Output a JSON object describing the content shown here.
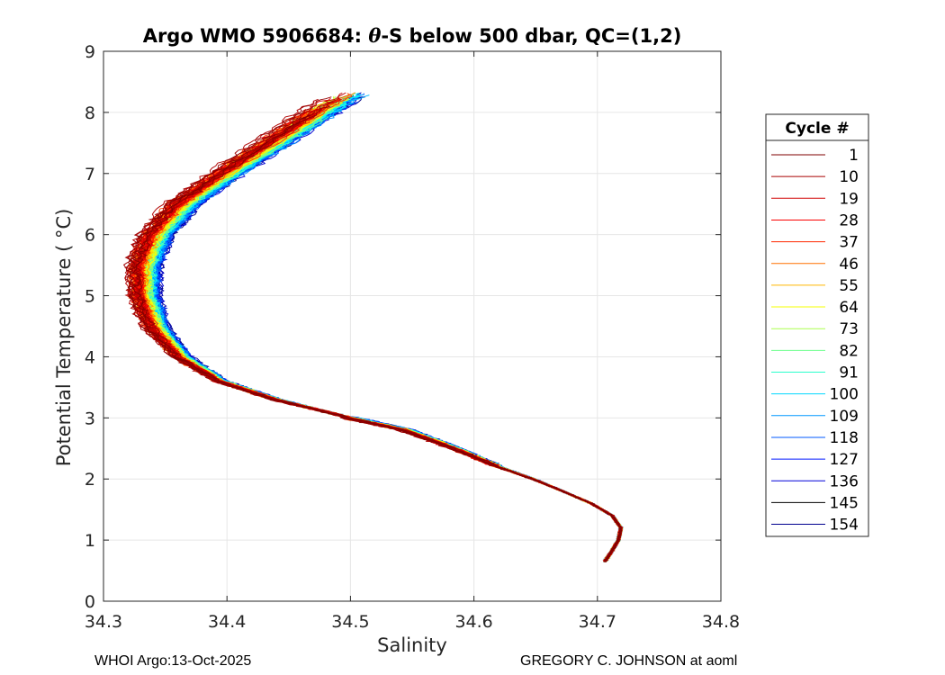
{
  "footer": {
    "left": "WHOI Argo:13-Oct-2025",
    "right": "GREGORY C. JOHNSON at aoml"
  },
  "chart_data": {
    "type": "line",
    "title_prefix": "Argo WMO 5906684: ",
    "title_symbol": "θ",
    "title_suffix": "-S below 500 dbar,  QC=(1,2)",
    "xlabel": "Salinity",
    "ylabel": "Potential Temperature ( °C)",
    "xlim": [
      34.3,
      34.8
    ],
    "ylim": [
      0,
      9
    ],
    "xticks": [
      34.3,
      34.4,
      34.5,
      34.6,
      34.7,
      34.8
    ],
    "xtick_labels": [
      "34.3",
      "34.4",
      "34.5",
      "34.6",
      "34.7",
      "34.8"
    ],
    "yticks": [
      0,
      1,
      2,
      3,
      4,
      5,
      6,
      7,
      8,
      9
    ],
    "ytick_labels": [
      "0",
      "1",
      "2",
      "3",
      "4",
      "5",
      "6",
      "7",
      "8",
      "9"
    ],
    "grid": true,
    "legend_title": "Cycle #",
    "legend_location": "outside-right",
    "colormap": "jet",
    "total_cycles": 154,
    "series": [
      {
        "name": "1",
        "color": "#7f0000"
      },
      {
        "name": "10",
        "color": "#a80000"
      },
      {
        "name": "19",
        "color": "#d10000"
      },
      {
        "name": "28",
        "color": "#fa0000"
      },
      {
        "name": "37",
        "color": "#ff2800"
      },
      {
        "name": "46",
        "color": "#ff7000"
      },
      {
        "name": "55",
        "color": "#ffb800"
      },
      {
        "name": "64",
        "color": "#f5ff00"
      },
      {
        "name": "73",
        "color": "#aaff4d"
      },
      {
        "name": "82",
        "color": "#6bff8c"
      },
      {
        "name": "91",
        "color": "#2affcc"
      },
      {
        "name": "100",
        "color": "#00d8ff"
      },
      {
        "name": "109",
        "color": "#0098ff"
      },
      {
        "name": "118",
        "color": "#0058ff"
      },
      {
        "name": "127",
        "color": "#0018ff"
      },
      {
        "name": "136",
        "color": "#0000d8"
      },
      {
        "name": "145",
        "color": "#000000"
      },
      {
        "name": "154",
        "color": "#00008f"
      }
    ],
    "representative_profile": {
      "temperature": [
        8.35,
        8.0,
        7.5,
        7.0,
        6.5,
        6.0,
        5.5,
        5.0,
        4.5,
        4.0,
        3.6,
        3.3,
        3.0,
        2.8,
        2.5,
        2.2,
        2.0,
        1.8,
        1.6,
        1.4,
        1.2,
        1.0,
        0.8,
        0.65
      ],
      "salinity": [
        34.505,
        34.475,
        34.438,
        34.4,
        34.365,
        34.343,
        34.333,
        34.333,
        34.342,
        34.363,
        34.395,
        34.44,
        34.5,
        34.545,
        34.585,
        34.62,
        34.648,
        34.672,
        34.695,
        34.712,
        34.719,
        34.717,
        34.711,
        34.706
      ]
    }
  }
}
